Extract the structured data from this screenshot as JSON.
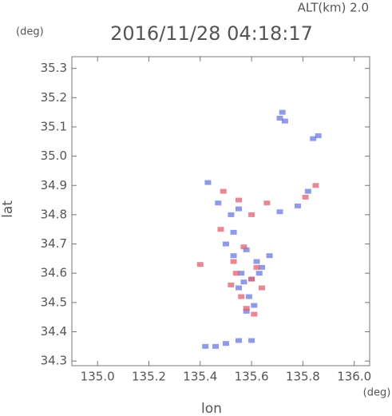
{
  "chart_data": {
    "type": "scatter",
    "title": "2016/11/28 04:18:17",
    "subtitle": "ALT(km) 2.0",
    "x_label": "lon",
    "y_label": "lat",
    "x_unit": "(deg)",
    "y_unit": "(deg)",
    "xlim": [
      134.9,
      136.06
    ],
    "ylim": [
      34.284,
      35.34
    ],
    "xticks": [
      {
        "value": 135.0,
        "label": "135.0"
      },
      135.2,
      135.4,
      135.6,
      135.8,
      {
        "value": 136.0,
        "label": "136.0"
      }
    ],
    "yticks": [
      34.3,
      34.4,
      34.5,
      34.6,
      34.7,
      34.8,
      34.9,
      {
        "value": 35.0,
        "label": "35.0"
      },
      35.1,
      35.2,
      35.3
    ],
    "series": [
      {
        "color": "#6a78e0",
        "x": [
          135.72,
          135.73,
          135.71,
          135.84,
          135.86,
          135.43,
          135.47,
          135.52,
          135.55,
          135.5,
          135.53,
          135.58,
          135.62,
          135.56,
          135.6,
          135.64,
          135.55,
          135.59,
          135.58,
          135.61,
          135.63,
          135.67,
          135.71,
          135.78,
          135.82,
          135.42,
          135.46,
          135.5,
          135.55,
          135.6,
          135.53,
          135.57
        ],
        "values": [
          35.15,
          35.12,
          35.13,
          35.06,
          35.07,
          34.91,
          34.84,
          34.8,
          34.82,
          34.7,
          34.66,
          34.68,
          34.64,
          34.6,
          34.58,
          34.62,
          34.55,
          34.52,
          34.47,
          34.49,
          34.6,
          34.66,
          34.81,
          34.83,
          34.88,
          34.35,
          34.35,
          34.36,
          34.37,
          34.37,
          34.74,
          34.57
        ]
      },
      {
        "color": "#e06070",
        "x": [
          135.49,
          135.55,
          135.6,
          135.53,
          135.57,
          135.62,
          135.4,
          135.52,
          135.56,
          135.58,
          135.61,
          135.6,
          135.54,
          135.66,
          135.81,
          135.85,
          135.48,
          135.64
        ],
        "values": [
          34.88,
          34.85,
          34.8,
          34.64,
          34.69,
          34.62,
          34.63,
          34.56,
          34.52,
          34.48,
          34.46,
          34.58,
          34.6,
          34.84,
          34.86,
          34.9,
          34.75,
          34.55
        ]
      }
    ]
  }
}
